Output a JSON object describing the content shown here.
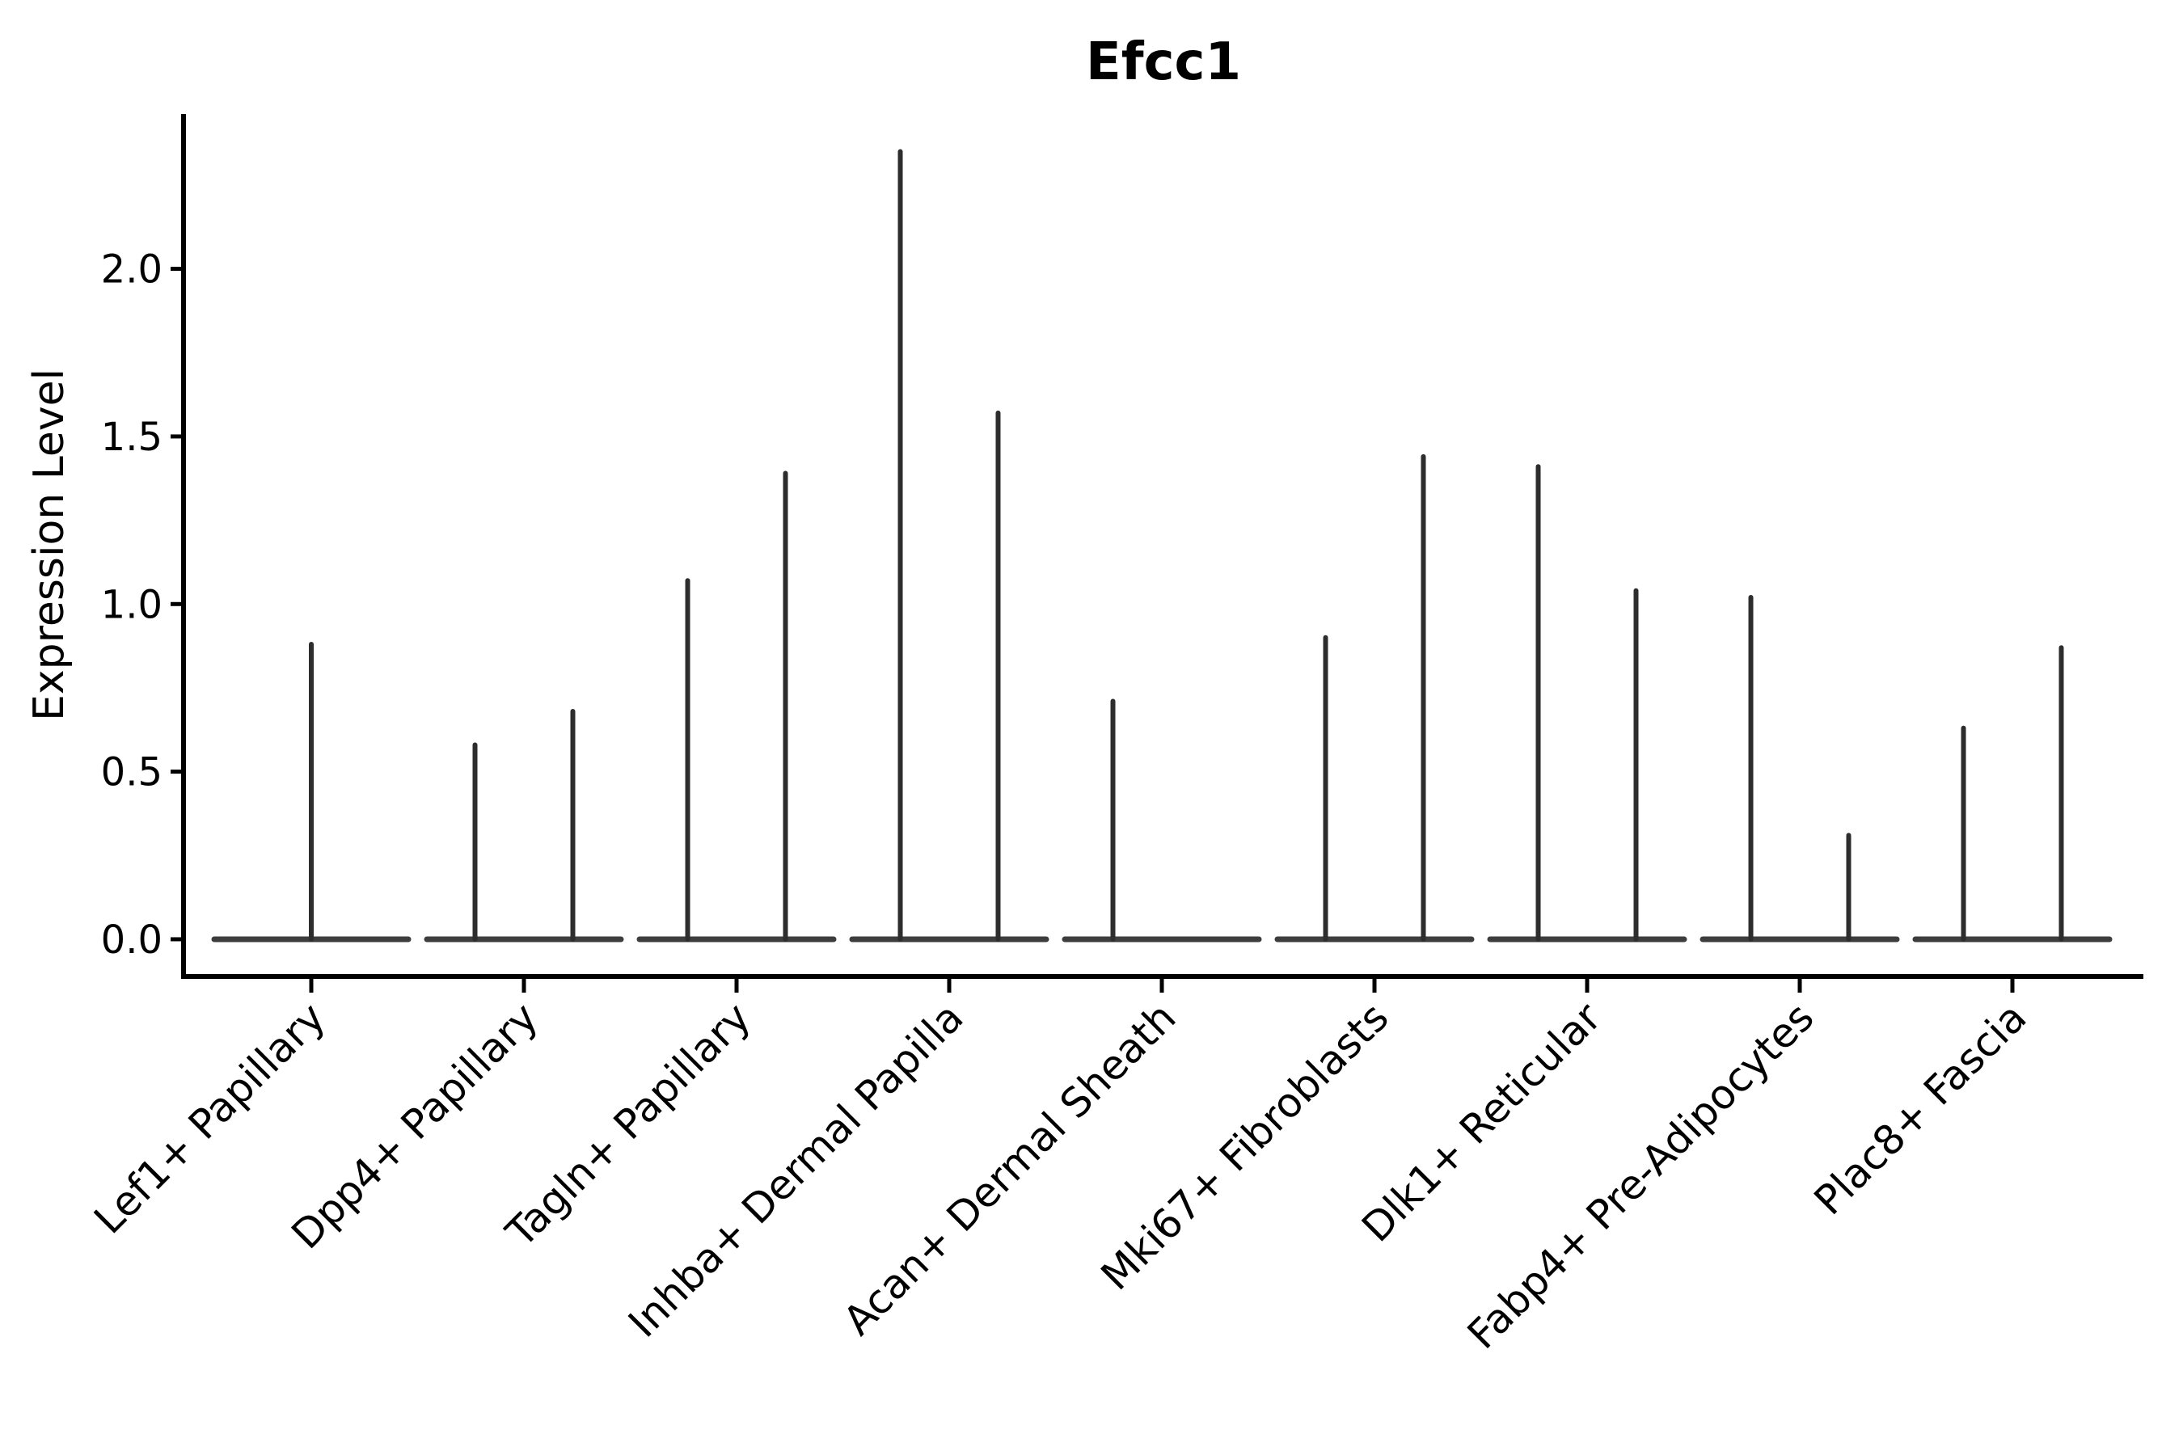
{
  "figure": {
    "background_color": "#ffffff",
    "text_color": "#000000",
    "axis_color": "#000000",
    "violin_line_color": "#2d2d2d"
  },
  "chart_data": {
    "type": "violin",
    "title": "Efcc1",
    "xlabel": "",
    "ylabel": "Expression Level",
    "yticks": [
      0.0,
      0.5,
      1.0,
      1.5,
      2.0
    ],
    "ylim": [
      -0.111,
      2.462
    ],
    "grid": false,
    "legend": "none",
    "xtick_rotation": 45,
    "categories": [
      "Lef1+ Papillary",
      "Dpp4+ Papillary",
      "Tagln+ Papillary",
      "Inhba+ Dermal Papilla",
      "Acan+ Dermal Sheath",
      "Mki67+ Fibroblasts",
      "Dlk1+ Reticular",
      "Fabp4+ Pre-Adipocytes",
      "Plac8+ Fascia"
    ],
    "description": "Violin plot of Efcc1 expression per fibroblast subtype; each violin collapses to a flat base at 0 with thin vertical spikes reaching the maximum expression of rare positive cells. Spike offset is the horizontal position within the category (fraction of category spacing).",
    "series": [
      {
        "category": "Lef1+ Papillary",
        "spikes": [
          {
            "offset": 0.0,
            "max": 0.88
          }
        ]
      },
      {
        "category": "Dpp4+ Papillary",
        "spikes": [
          {
            "offset": -0.23,
            "max": 0.58
          },
          {
            "offset": 0.23,
            "max": 0.68
          }
        ]
      },
      {
        "category": "Tagln+ Papillary",
        "spikes": [
          {
            "offset": -0.23,
            "max": 1.07
          },
          {
            "offset": 0.23,
            "max": 1.39
          }
        ]
      },
      {
        "category": "Inhba+ Dermal Papilla",
        "spikes": [
          {
            "offset": -0.23,
            "max": 2.35
          },
          {
            "offset": 0.23,
            "max": 1.57
          }
        ]
      },
      {
        "category": "Acan+ Dermal Sheath",
        "spikes": [
          {
            "offset": -0.23,
            "max": 0.71
          }
        ]
      },
      {
        "category": "Mki67+ Fibroblasts",
        "spikes": [
          {
            "offset": -0.23,
            "max": 0.9
          },
          {
            "offset": 0.23,
            "max": 1.44
          }
        ]
      },
      {
        "category": "Dlk1+ Reticular",
        "spikes": [
          {
            "offset": -0.23,
            "max": 1.41
          },
          {
            "offset": 0.23,
            "max": 1.04
          }
        ]
      },
      {
        "category": "Fabp4+ Pre-Adipocytes",
        "spikes": [
          {
            "offset": -0.23,
            "max": 1.02
          },
          {
            "offset": 0.23,
            "max": 0.31
          }
        ]
      },
      {
        "category": "Plac8+ Fascia",
        "spikes": [
          {
            "offset": -0.23,
            "max": 0.63
          },
          {
            "offset": 0.23,
            "max": 0.87
          }
        ]
      }
    ],
    "base_value": 0.0
  }
}
